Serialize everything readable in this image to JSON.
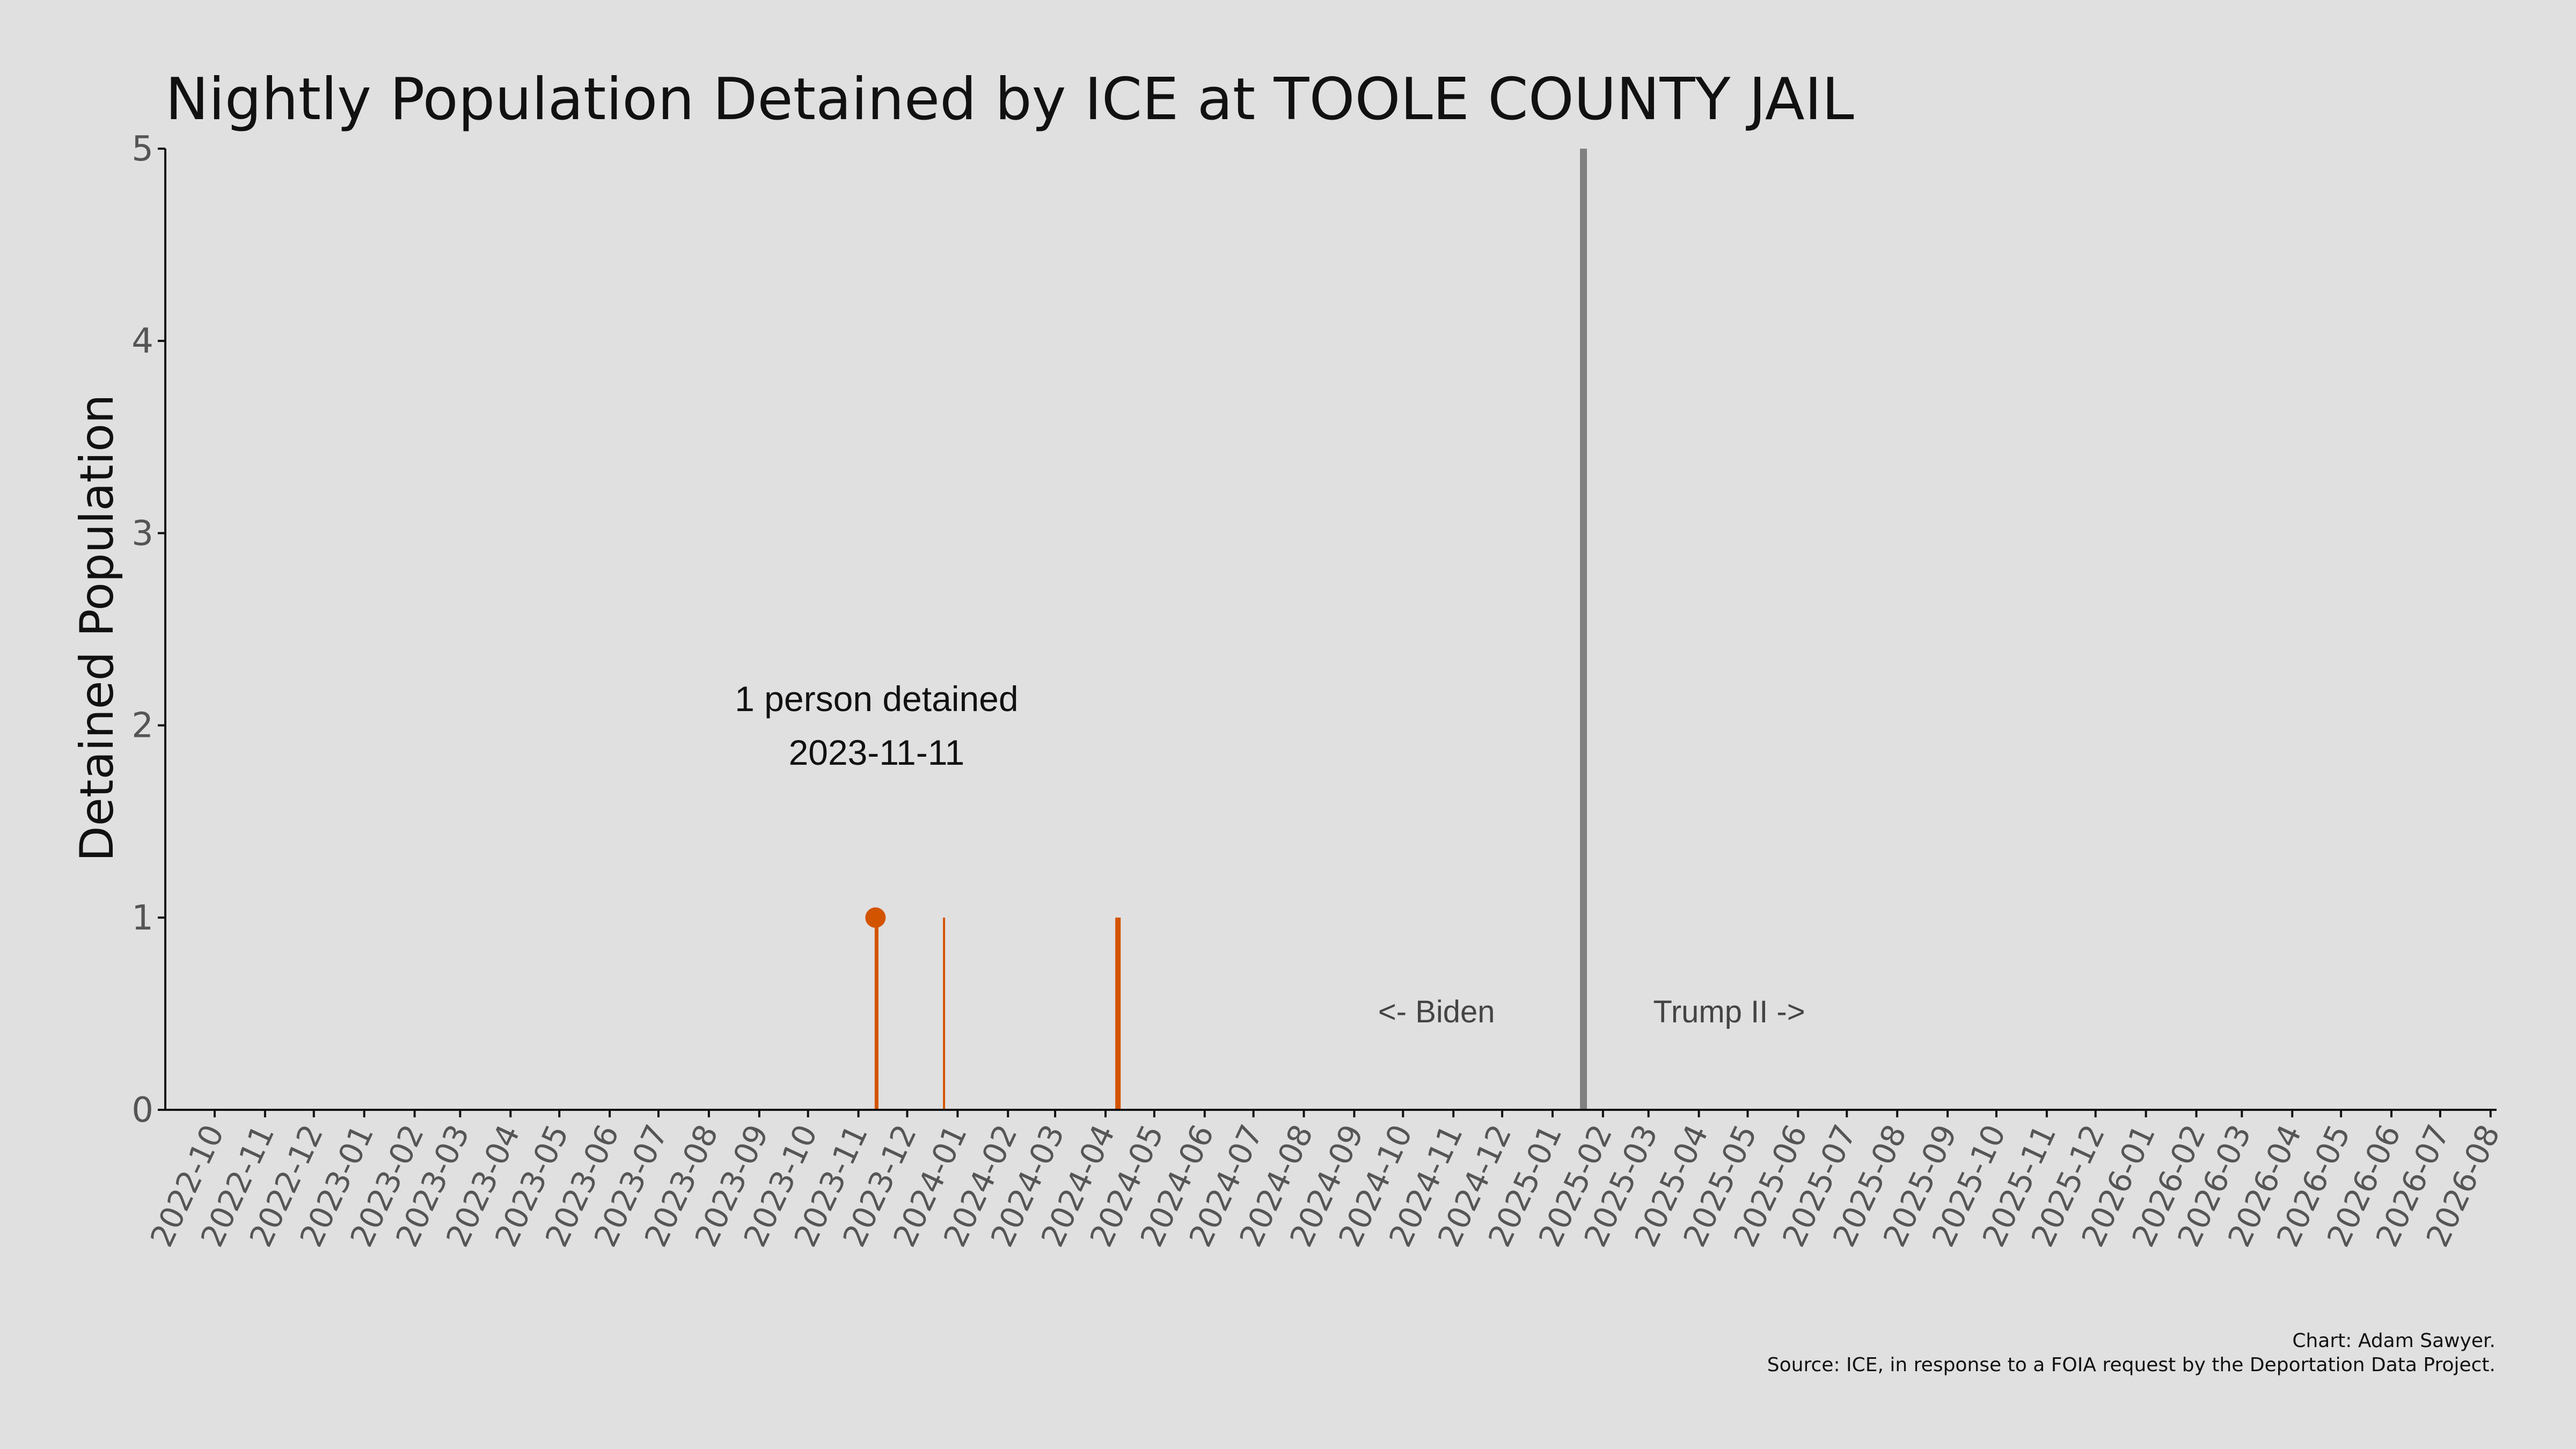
{
  "chart_data": {
    "type": "bar",
    "title": "Nightly Population Detained by ICE at TOOLE COUNTY JAIL",
    "ylabel": "Detained Population",
    "xlabel": "",
    "ylim": [
      0,
      5
    ],
    "yticks": [
      "0",
      "1",
      "2",
      "3",
      "4",
      "5"
    ],
    "xlim": [
      "2022-10-01",
      "2026-08-31"
    ],
    "x_tick_labels": [
      "2022-10",
      "2022-11",
      "2022-12",
      "2023-01",
      "2023-02",
      "2023-03",
      "2023-04",
      "2023-05",
      "2023-06",
      "2023-07",
      "2023-08",
      "2023-09",
      "2023-10",
      "2023-11",
      "2023-12",
      "2024-01",
      "2024-02",
      "2024-03",
      "2024-04",
      "2024-05",
      "2024-06",
      "2024-07",
      "2024-08",
      "2024-09",
      "2024-10",
      "2024-11",
      "2024-12",
      "2025-01",
      "2025-02",
      "2025-03",
      "2025-04",
      "2025-05",
      "2025-06",
      "2025-07",
      "2025-08",
      "2025-09",
      "2025-10",
      "2025-11",
      "2025-12",
      "2026-01",
      "2026-02",
      "2026-03",
      "2026-04",
      "2026-05",
      "2026-06",
      "2026-07",
      "2026-08"
    ],
    "grid": false,
    "legend": "none",
    "series": [
      {
        "color": "#d35400",
        "points": [
          {
            "date": "2023-11-11",
            "value": 1
          },
          {
            "date": "2023-11-12",
            "value": 1
          },
          {
            "date": "2023-12-23",
            "value": 1
          },
          {
            "date": "2024-04-07",
            "value": 1
          },
          {
            "date": "2024-04-08",
            "value": 1
          },
          {
            "date": "2024-04-09",
            "value": 1
          }
        ]
      }
    ],
    "highlight": {
      "date": "2023-11-11",
      "value": 1,
      "label_line1": "1 person detained",
      "label_line2": "2023-11-11"
    },
    "divider": {
      "date": "2025-01-20",
      "color": "#808080",
      "left_label": "<- Biden",
      "right_label": "Trump II ->"
    },
    "footer": {
      "credit": "Chart: Adam Sawyer.",
      "source": "Source: ICE, in response to a FOIA request by the Deportation Data Project."
    },
    "colors": {
      "background": "#e0e0e0",
      "bars": "#d35400",
      "divider": "#808080",
      "axis": "#111111"
    }
  }
}
